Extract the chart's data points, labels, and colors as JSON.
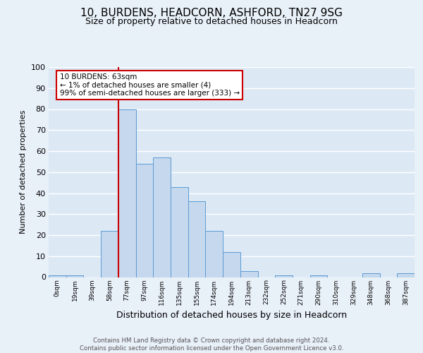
{
  "title": "10, BURDENS, HEADCORN, ASHFORD, TN27 9SG",
  "subtitle": "Size of property relative to detached houses in Headcorn",
  "xlabel": "Distribution of detached houses by size in Headcorn",
  "ylabel": "Number of detached properties",
  "bin_labels": [
    "0sqm",
    "19sqm",
    "39sqm",
    "58sqm",
    "77sqm",
    "97sqm",
    "116sqm",
    "135sqm",
    "155sqm",
    "174sqm",
    "194sqm",
    "213sqm",
    "232sqm",
    "252sqm",
    "271sqm",
    "290sqm",
    "310sqm",
    "329sqm",
    "348sqm",
    "368sqm",
    "387sqm"
  ],
  "bar_values": [
    1,
    1,
    0,
    22,
    80,
    54,
    57,
    43,
    36,
    22,
    12,
    3,
    0,
    1,
    0,
    1,
    0,
    0,
    2,
    0,
    2
  ],
  "bar_color": "#c5d8ed",
  "bar_edge_color": "#5b9bd5",
  "background_color": "#e8f0f8",
  "plot_bg_color": "#dce9f5",
  "grid_color": "#ffffff",
  "ylim": [
    0,
    100
  ],
  "yticks": [
    0,
    10,
    20,
    30,
    40,
    50,
    60,
    70,
    80,
    90,
    100
  ],
  "red_line_x": 3.5,
  "annotation_title": "10 BURDENS: 63sqm",
  "annotation_line1": "← 1% of detached houses are smaller (4)",
  "annotation_line2": "99% of semi-detached houses are larger (333) →",
  "annotation_box_color": "#ffffff",
  "annotation_border_color": "#cc0000",
  "red_line_color": "#cc0000",
  "footer_line1": "Contains HM Land Registry data © Crown copyright and database right 2024.",
  "footer_line2": "Contains public sector information licensed under the Open Government Licence v3.0."
}
